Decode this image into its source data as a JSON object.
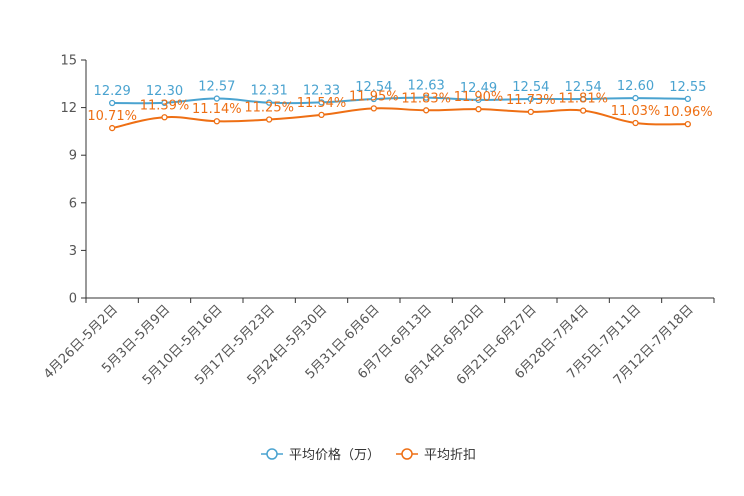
{
  "chart_data": {
    "type": "line",
    "title": "",
    "xlabel": "",
    "ylabel": "",
    "ylim": [
      0,
      15
    ],
    "yticks": [
      0,
      3,
      6,
      9,
      12,
      15
    ],
    "categories": [
      "4月26日-5月2日",
      "5月3日-5月9日",
      "5月10日-5月16日",
      "5月17日-5月23日",
      "5月24日-5月30日",
      "5月31日-6月6日",
      "6月7日-6月13日",
      "6月14日-6月20日",
      "6月21日-6月27日",
      "6月28日-7月4日",
      "7月5日-7月11日",
      "7月12日-7月18日"
    ],
    "series": [
      {
        "name": "平均价格（万）",
        "color": "#4aa3d0",
        "values": [
          12.29,
          12.3,
          12.57,
          12.31,
          12.33,
          12.54,
          12.63,
          12.49,
          12.54,
          12.54,
          12.6,
          12.55
        ],
        "labels": [
          "12.29",
          "12.30",
          "12.57",
          "12.31",
          "12.33",
          "12.54",
          "12.63",
          "12.49",
          "12.54",
          "12.54",
          "12.60",
          "12.55"
        ]
      },
      {
        "name": "平均折扣",
        "color": "#ee6f14",
        "values": [
          10.71,
          11.39,
          11.14,
          11.25,
          11.54,
          11.95,
          11.83,
          11.9,
          11.73,
          11.81,
          11.03,
          10.96
        ],
        "labels": [
          "10.71%",
          "11.39%",
          "11.14%",
          "11.25%",
          "11.54%",
          "11.95%",
          "11.83%",
          "11.90%",
          "11.73%",
          "11.81%",
          "11.03%",
          "10.96%"
        ]
      }
    ],
    "legend": "bottom-center",
    "grid": false
  }
}
